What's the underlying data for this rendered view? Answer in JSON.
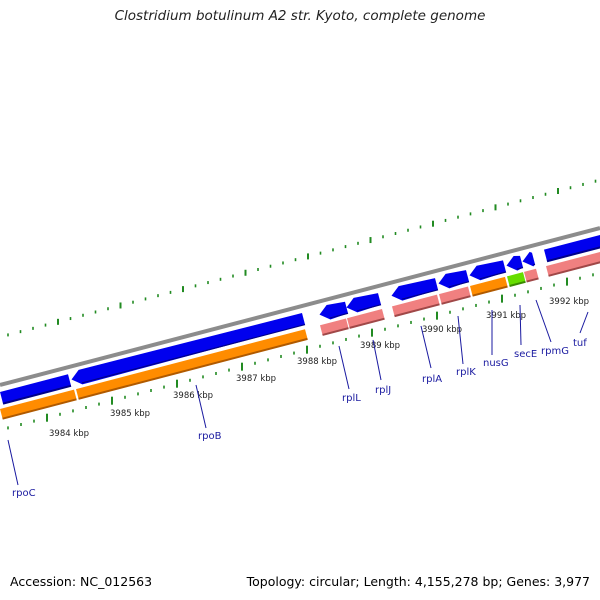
{
  "title": "Clostridium botulinum A2 str. Kyoto, complete genome",
  "footer": {
    "accession": "Accession: NC_012563",
    "topology": "Topology: circular; Length: 4,155,278 bp; Genes: 3,977"
  },
  "kbp_labels": [
    "3984 kbp",
    "3985 kbp",
    "3986 kbp",
    "3987 kbp",
    "3988 kbp",
    "3989 kbp",
    "3990 kbp",
    "3991 kbp",
    "3992 kbp"
  ],
  "gene_labels": [
    "rpoC",
    "rpoB",
    "rplL",
    "rplJ",
    "rplA",
    "rplK",
    "nusG",
    "secE",
    "rpmG",
    "tuf"
  ],
  "colors": {
    "backbone": "#8c8c8c",
    "cds_blue": "#0000ee",
    "rna_orange": "#ff8c00",
    "rna_pink": "#f08080",
    "secE_green": "#66dd00",
    "ticks": "#228b22",
    "label_blue": "#1a1aa0"
  }
}
